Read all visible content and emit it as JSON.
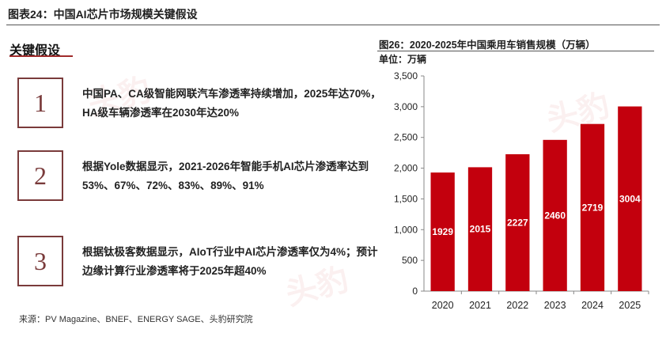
{
  "header": {
    "title": "图表24：中国AI芯片市场规模关键假设"
  },
  "assumptions": {
    "heading": "关键假设",
    "items": [
      {
        "num": "1",
        "text": "中国PA、CA级智能网联汽车渗透率持续增加，2025年达70%，HA级车辆渗透率在2030年达20%"
      },
      {
        "num": "2",
        "text": "根据Yole数据显示，2021-2026年智能手机AI芯片渗透率达到53%、67%、72%、83%、89%、91%"
      },
      {
        "num": "3",
        "text": "根据钛极客数据显示，AIoT行业中AI芯片渗透率仅为4%；预计边缘计算行业渗透率将于2025年超40%"
      }
    ]
  },
  "source": "来源：PV Magazine、BNEF、ENERGY SAGE、头豹研究院",
  "watermark": "头豹",
  "chart": {
    "title": "图26：2020-2025年中国乘用车销售规模（万辆）",
    "unit": "单位：万辆"
  },
  "chart_data": {
    "type": "bar",
    "title": "图26：2020-2025年中国乘用车销售规模（万辆）",
    "categories": [
      "2020",
      "2021",
      "2022",
      "2023",
      "2024",
      "2025"
    ],
    "values": [
      1929,
      2015,
      2227,
      2460,
      2719,
      3004
    ],
    "ylim": [
      0,
      3500
    ],
    "yticks": [
      "0",
      "500",
      "1,000",
      "1,500",
      "2,000",
      "2,500",
      "3,000",
      "3,500"
    ],
    "bar_color": "#c3000d",
    "grid": false,
    "legend": "none"
  }
}
